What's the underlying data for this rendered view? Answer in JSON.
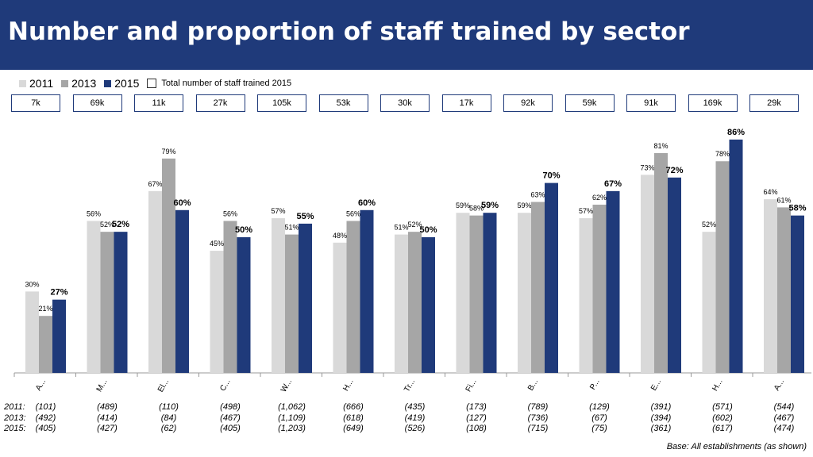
{
  "header": {
    "title": "Number and proportion of staff trained by sector"
  },
  "legend": {
    "items": [
      {
        "label": "2011",
        "color": "#d9d9d9"
      },
      {
        "label": "2013",
        "color": "#a6a6a6"
      },
      {
        "label": "2015",
        "color": "#1f3a7a"
      }
    ],
    "totals_label": "Total number of staff trained 2015"
  },
  "totals": [
    "7k",
    "69k",
    "11k",
    "27k",
    "105k",
    "53k",
    "30k",
    "17k",
    "92k",
    "59k",
    "91k",
    "169k",
    "29k"
  ],
  "chart_data": {
    "type": "bar",
    "categories": [
      "A...",
      "M...",
      "El...",
      "C...",
      "W...",
      "H...",
      "Tr...",
      "Fi...",
      "B...",
      "P...",
      "E...",
      "H...",
      "A..."
    ],
    "series": [
      {
        "name": "2011",
        "values": [
          30,
          56,
          67,
          45,
          57,
          48,
          51,
          59,
          59,
          57,
          73,
          52,
          64
        ]
      },
      {
        "name": "2013",
        "values": [
          21,
          52,
          79,
          56,
          51,
          56,
          52,
          58,
          63,
          62,
          81,
          78,
          61
        ]
      },
      {
        "name": "2015",
        "values": [
          27,
          52,
          60,
          50,
          55,
          60,
          50,
          59,
          70,
          67,
          72,
          86,
          58
        ]
      }
    ],
    "unit": "%",
    "ylim": [
      0,
      90
    ],
    "grid": false,
    "legend": "top-left"
  },
  "bases": {
    "rows": [
      {
        "label": "2011:",
        "values": [
          "(101)",
          "(489)",
          "(110)",
          "(498)",
          "(1,062)",
          "(666)",
          "(435)",
          "(173)",
          "(789)",
          "(129)",
          "(391)",
          "(571)",
          "(544)"
        ]
      },
      {
        "label": "2013:",
        "values": [
          "(492)",
          "(414)",
          "(84)",
          "(467)",
          "(1,109)",
          "(618)",
          "(419)",
          "(127)",
          "(736)",
          "(67)",
          "(394)",
          "(602)",
          "(467)"
        ]
      },
      {
        "label": "2015:",
        "values": [
          "(405)",
          "(427)",
          "(62)",
          "(405)",
          "(1,203)",
          "(649)",
          "(526)",
          "(108)",
          "(715)",
          "(75)",
          "(361)",
          "(617)",
          "(474)"
        ]
      }
    ],
    "note": "Base: All establishments (as shown)"
  }
}
